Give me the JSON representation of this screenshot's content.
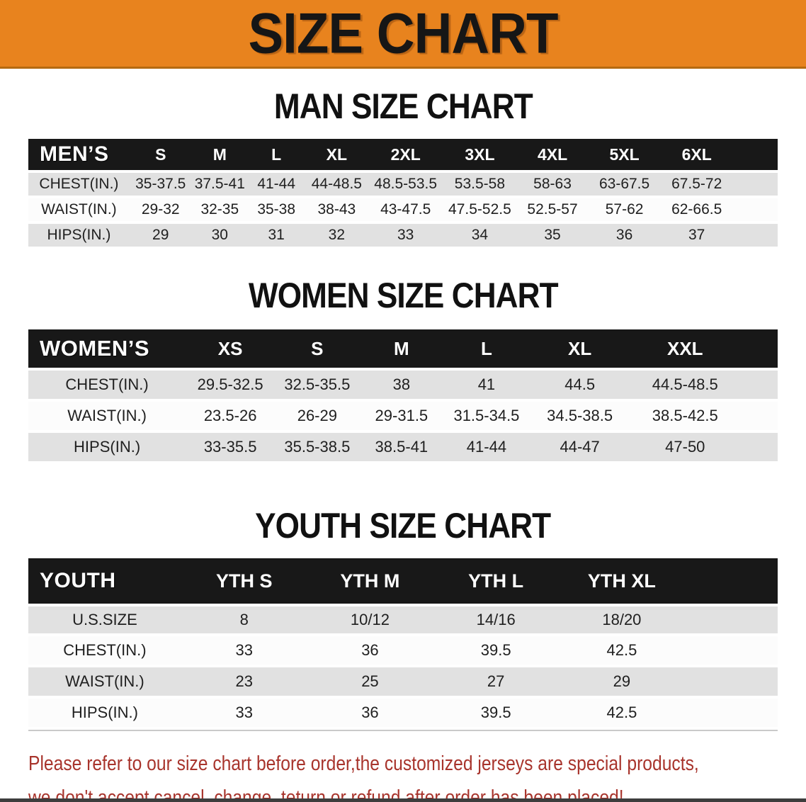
{
  "banner": {
    "title": "SIZE CHART",
    "bg_color": "#E8831E"
  },
  "sections": {
    "men": {
      "heading": "MAN SIZE CHART",
      "columns": [
        "MEN’S",
        "S",
        "M",
        "L",
        "XL",
        "2XL",
        "3XL",
        "4XL",
        "5XL",
        "6XL"
      ],
      "rows": [
        {
          "label": "CHEST(IN.)",
          "values": [
            "35-37.5",
            "37.5-41",
            "41-44",
            "44-48.5",
            "48.5-53.5",
            "53.5-58",
            "58-63",
            "63-67.5",
            "67.5-72"
          ]
        },
        {
          "label": "WAIST(IN.)",
          "values": [
            "29-32",
            "32-35",
            "35-38",
            "38-43",
            "43-47.5",
            "47.5-52.5",
            "52.5-57",
            "57-62",
            "62-66.5"
          ]
        },
        {
          "label": "HIPS(IN.)",
          "values": [
            "29",
            "30",
            "31",
            "32",
            "33",
            "34",
            "35",
            "36",
            "37"
          ]
        }
      ]
    },
    "women": {
      "heading": "WOMEN SIZE CHART",
      "columns": [
        "WOMEN’S",
        "XS",
        "S",
        "M",
        "L",
        "XL",
        "XXL"
      ],
      "rows": [
        {
          "label": "CHEST(IN.)",
          "values": [
            "29.5-32.5",
            "32.5-35.5",
            "38",
            "41",
            "44.5",
            "44.5-48.5"
          ]
        },
        {
          "label": "WAIST(IN.)",
          "values": [
            "23.5-26",
            "26-29",
            "29-31.5",
            "31.5-34.5",
            "34.5-38.5",
            "38.5-42.5"
          ]
        },
        {
          "label": "HIPS(IN.)",
          "values": [
            "33-35.5",
            "35.5-38.5",
            "38.5-41",
            "41-44",
            "44-47",
            "47-50"
          ]
        }
      ]
    },
    "youth": {
      "heading": "YOUTH SIZE CHART",
      "columns": [
        "YOUTH",
        "YTH S",
        "YTH M",
        "YTH L",
        "YTH XL"
      ],
      "rows": [
        {
          "label": "U.S.SIZE",
          "values": [
            "8",
            "10/12",
            "14/16",
            "18/20"
          ]
        },
        {
          "label": "CHEST(IN.)",
          "values": [
            "33",
            "36",
            "39.5",
            "42.5"
          ]
        },
        {
          "label": "WAIST(IN.)",
          "values": [
            "23",
            "25",
            "27",
            "29"
          ]
        },
        {
          "label": "HIPS(IN.)",
          "values": [
            "33",
            "36",
            "39.5",
            "42.5"
          ]
        }
      ]
    }
  },
  "footer": {
    "line1": "Please refer to our size chart before order,the customized jerseys are special products,",
    "line2": "we don't accept cancel, change, teturn or refund after order has been placed!",
    "text_color": "#A8342C"
  }
}
